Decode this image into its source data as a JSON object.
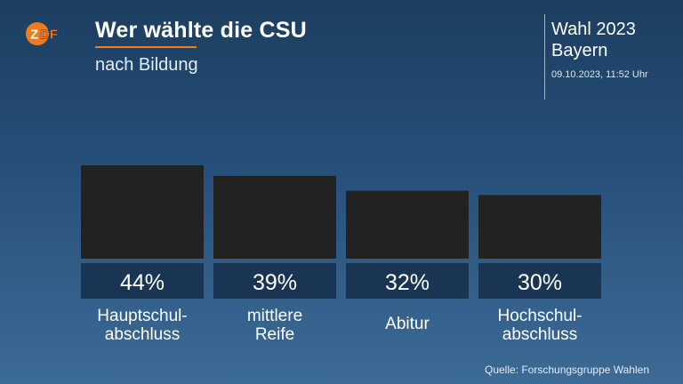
{
  "header": {
    "logo_text": "ZDF",
    "title": "Wer wählte die CSU",
    "subtitle": "nach Bildung",
    "election": [
      "Wahl 2023",
      "Bayern"
    ],
    "timestamp": "09.10.2023, 11:52 Uhr"
  },
  "colors": {
    "bar": "#222222",
    "value_box": "#1a3553",
    "accent": "#f07a1e"
  },
  "chart_data": {
    "type": "bar",
    "title": "Wer wählte die CSU",
    "subtitle": "nach Bildung",
    "categories": [
      "Hauptschul-\nabschluss",
      "mittlere\nReife",
      "Abitur",
      "Hochschul-\nabschluss"
    ],
    "values": [
      44,
      39,
      32,
      30
    ],
    "value_labels": [
      "44%",
      "39%",
      "32%",
      "30%"
    ],
    "unit": "%",
    "ylim": [
      0,
      44
    ],
    "grid": false
  },
  "footer": {
    "source": "Quelle: Forschungsgruppe Wahlen"
  }
}
